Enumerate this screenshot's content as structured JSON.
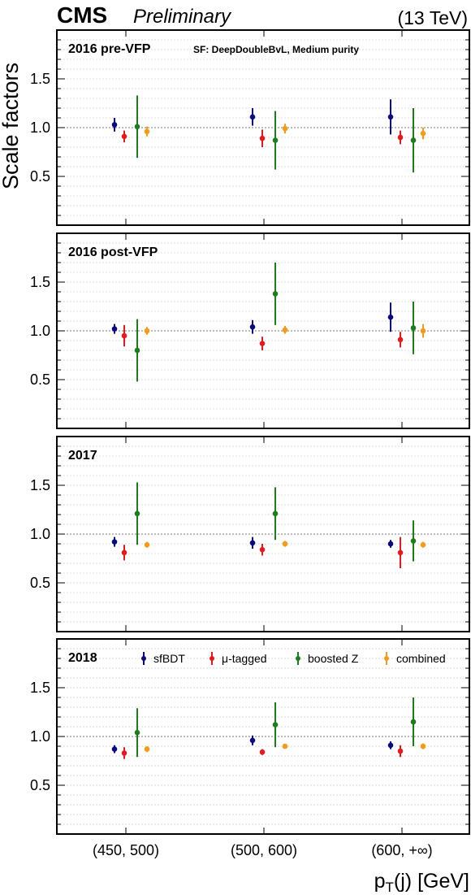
{
  "header": {
    "experiment": "CMS",
    "status": "Preliminary",
    "energy": "(13 TeV)"
  },
  "chart_data": {
    "type": "scatter",
    "ylabel": "Scale factors",
    "xlabel": "p",
    "xlabel_sub": "T",
    "xlabel_rest": "(j) [GeV]",
    "ylim": [
      0,
      2
    ],
    "yticks": [
      "0.5",
      "1.0",
      "1.5"
    ],
    "reference_line": 1.0,
    "categories": [
      "(450, 500)",
      "(500, 600)",
      "(600, +∞)"
    ],
    "note": "SF: DeepDoubleBvL,  Medium purity",
    "series": [
      {
        "name": "sfBDT",
        "color": "#0a0a80"
      },
      {
        "name": "μ-tagged",
        "color": "#e8191c"
      },
      {
        "name": "boosted Z",
        "color": "#1b7d1b"
      },
      {
        "name": "combined",
        "color": "#f39c1a"
      }
    ],
    "panels": [
      {
        "title": "2016 pre-VFP",
        "points": [
          [
            [
              1.03,
              0.07
            ],
            [
              1.11,
              0.09
            ],
            [
              1.11,
              0.18
            ]
          ],
          [
            [
              0.91,
              0.06
            ],
            [
              0.89,
              0.09
            ],
            [
              0.9,
              0.07
            ]
          ],
          [
            [
              1.01,
              0.32
            ],
            [
              0.87,
              0.3
            ],
            [
              0.87,
              0.33
            ]
          ],
          [
            [
              0.96,
              0.05
            ],
            [
              0.99,
              0.05
            ],
            [
              0.94,
              0.06
            ]
          ]
        ]
      },
      {
        "title": "2016 post-VFP",
        "points": [
          [
            [
              1.02,
              0.05
            ],
            [
              1.04,
              0.07
            ],
            [
              1.14,
              0.15
            ]
          ],
          [
            [
              0.95,
              0.11
            ],
            [
              0.87,
              0.07
            ],
            [
              0.91,
              0.08
            ]
          ],
          [
            [
              0.8,
              0.32
            ],
            [
              1.38,
              0.32
            ],
            [
              1.03,
              0.27
            ]
          ],
          [
            [
              1.0,
              0.04
            ],
            [
              1.01,
              0.04
            ],
            [
              1.0,
              0.07
            ]
          ]
        ]
      },
      {
        "title": "2017",
        "points": [
          [
            [
              0.92,
              0.05
            ],
            [
              0.91,
              0.06
            ],
            [
              0.9,
              0.04
            ]
          ],
          [
            [
              0.81,
              0.08
            ],
            [
              0.84,
              0.06
            ],
            [
              0.81,
              0.16
            ]
          ],
          [
            [
              1.21,
              0.32
            ],
            [
              1.21,
              0.27
            ],
            [
              0.93,
              0.21
            ]
          ],
          [
            [
              0.89,
              0.03
            ],
            [
              0.9,
              0.03
            ],
            [
              0.89,
              0.03
            ]
          ]
        ]
      },
      {
        "title": "2018",
        "points": [
          [
            [
              0.87,
              0.04
            ],
            [
              0.96,
              0.05
            ],
            [
              0.91,
              0.04
            ]
          ],
          [
            [
              0.83,
              0.06
            ],
            [
              0.84,
              0.03
            ],
            [
              0.85,
              0.06
            ]
          ],
          [
            [
              1.04,
              0.25
            ],
            [
              1.12,
              0.23
            ],
            [
              1.15,
              0.25
            ]
          ],
          [
            [
              0.87,
              0.03
            ],
            [
              0.9,
              0.02
            ],
            [
              0.9,
              0.03
            ]
          ]
        ]
      }
    ]
  }
}
